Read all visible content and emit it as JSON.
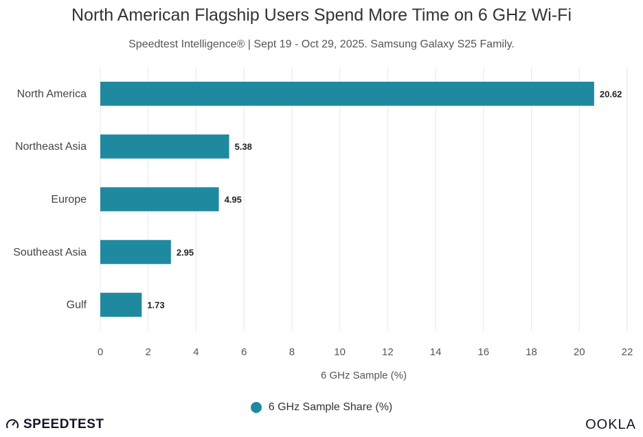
{
  "chart_data": {
    "type": "bar",
    "orientation": "horizontal",
    "title": "North American Flagship Users Spend More Time on 6 GHz Wi-Fi",
    "subtitle": "Speedtest Intelligence® | Sept 19 - Oct 29, 2025. Samsung Galaxy S25 Family.",
    "categories": [
      "North America",
      "Northeast Asia",
      "Europe",
      "Southeast Asia",
      "Gulf"
    ],
    "series": [
      {
        "name": "6 GHz Sample Share (%)",
        "values": [
          20.62,
          5.38,
          4.95,
          2.95,
          1.73
        ],
        "color": "#1f8a9f"
      }
    ],
    "xlabel": "6 GHz Sample (%)",
    "ylabel": "",
    "xlim": [
      0,
      22
    ],
    "xticks": [
      0,
      2,
      4,
      6,
      8,
      10,
      12,
      14,
      16,
      18,
      20,
      22
    ],
    "grid": true,
    "legend_position": "bottom-center"
  },
  "branding": {
    "left_logo": "SPEEDTEST",
    "right_logo": "OOKLA"
  },
  "colors": {
    "bar": "#1f8a9f",
    "grid": "#e6e6e6",
    "text": "#333333"
  }
}
